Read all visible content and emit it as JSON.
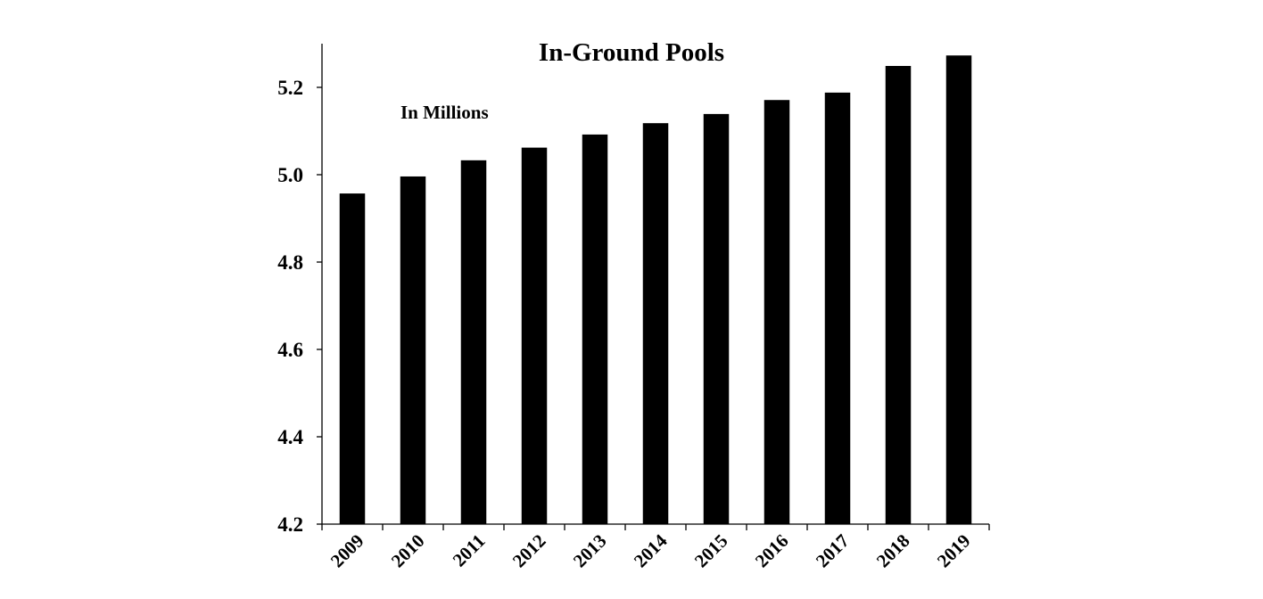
{
  "chart_data": {
    "type": "bar",
    "title": "In-Ground Pools",
    "annotation": "In Millions",
    "xlabel": "",
    "ylabel": "",
    "categories": [
      "2009",
      "2010",
      "2011",
      "2012",
      "2013",
      "2014",
      "2015",
      "2016",
      "2017",
      "2018",
      "2019"
    ],
    "values": [
      4.957,
      4.996,
      5.033,
      5.062,
      5.092,
      5.118,
      5.139,
      5.171,
      5.188,
      5.249,
      5.273
    ],
    "ylim": [
      4.2,
      5.3
    ],
    "yticks": [
      4.2,
      4.4,
      4.6,
      4.8,
      5.0,
      5.2
    ],
    "ytick_labels": [
      "4.2",
      "4.4",
      "4.6",
      "4.8",
      "5.0",
      "5.2"
    ],
    "bar_color": "#000000",
    "grid": false,
    "legend": null,
    "xtick_rotation": -45
  }
}
